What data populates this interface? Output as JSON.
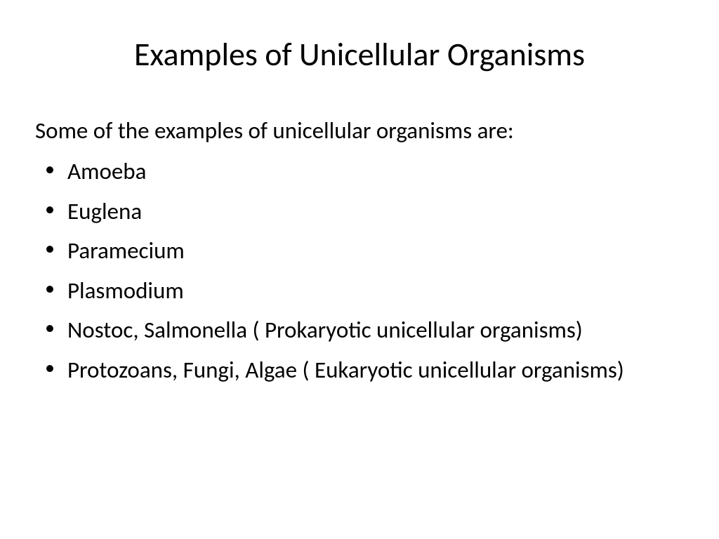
{
  "slide": {
    "title": "Examples of Unicellular Organisms",
    "intro": "Some of the examples of unicellular organisms are:",
    "bullets": [
      "Amoeba",
      "Euglena",
      "Paramecium",
      "Plasmodium",
      "Nostoc, Salmonella ( Prokaryotic unicellular organisms)",
      "Protozoans, Fungi, Algae ( Eukaryotic unicellular organisms)"
    ]
  },
  "styling": {
    "background_color": "#ffffff",
    "text_color": "#000000",
    "title_fontsize": 46,
    "body_fontsize": 33,
    "font_family": "Calibri",
    "title_weight": 400,
    "body_weight": 400
  }
}
